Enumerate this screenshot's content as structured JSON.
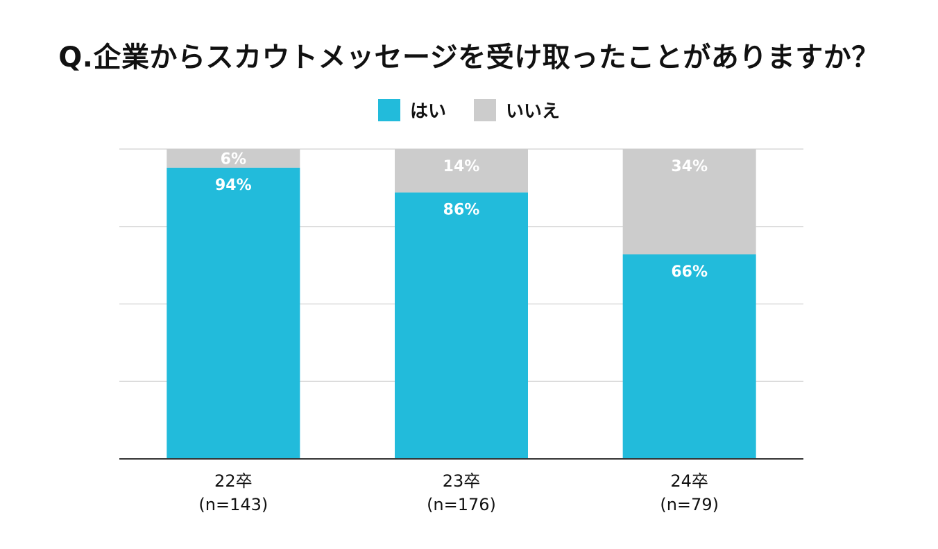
{
  "chart_data": {
    "type": "bar",
    "stacked": true,
    "title": "Q.企業からスカウトメッセージを受け取ったことがありますか？",
    "categories": [
      "22卒",
      "23卒",
      "24卒"
    ],
    "category_sublabels": [
      "(n=143)",
      "(n=176)",
      "(n=79)"
    ],
    "series": [
      {
        "name": "はい",
        "color": "#22bbdb",
        "values": [
          94,
          86,
          66
        ],
        "labels": [
          "94%",
          "86%",
          "66%"
        ]
      },
      {
        "name": "いいえ",
        "color": "#cccccc",
        "values": [
          6,
          14,
          34
        ],
        "labels": [
          "6%",
          "14%",
          "34%"
        ]
      }
    ],
    "ylim": [
      0,
      100
    ],
    "grid": true,
    "legend_position": "top-center",
    "unit": "%"
  }
}
